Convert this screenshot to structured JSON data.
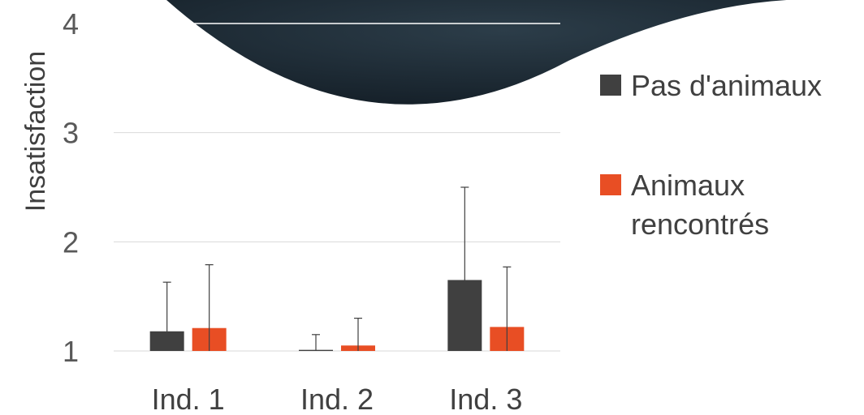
{
  "chart_data": {
    "type": "bar",
    "title": "",
    "xlabel": "",
    "ylabel": "Insatisfaction",
    "categories": [
      "Ind. 1",
      "Ind. 2",
      "Ind. 3"
    ],
    "yticks": [
      "1",
      "2",
      "3",
      "4"
    ],
    "ylim": [
      1,
      4
    ],
    "grid": true,
    "legend_position": "right",
    "series": [
      {
        "name": "Pas d'animaux",
        "color": "#404040",
        "values": [
          1.18,
          1.01,
          1.65
        ],
        "error": [
          0.45,
          0.14,
          0.85
        ]
      },
      {
        "name": "Animaux rencontrés",
        "legend_lines": [
          "Animaux",
          "rencontrés"
        ],
        "color": "#E84E24",
        "values": [
          1.21,
          1.05,
          1.22
        ],
        "error": [
          0.58,
          0.25,
          0.55
        ]
      }
    ]
  },
  "decoration": {
    "name": "dark-planet-image",
    "color": "#1e2b35"
  }
}
